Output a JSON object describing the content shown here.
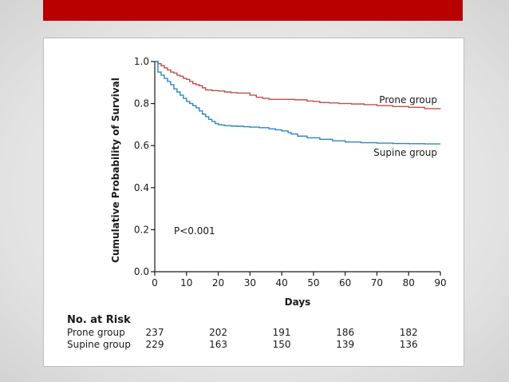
{
  "colors": {
    "banner": "#b80000",
    "prone": "#c0504d",
    "supine": "#2e86c1"
  },
  "chart_data": {
    "type": "line",
    "step": true,
    "ylabel": "Cumulative Probability of Survival",
    "xlabel": "Days",
    "xlim": [
      0,
      90
    ],
    "ylim": [
      0.0,
      1.0
    ],
    "xticks": [
      0,
      10,
      20,
      30,
      40,
      50,
      60,
      70,
      80,
      90
    ],
    "yticks": [
      "0.0",
      "0.2",
      "0.4",
      "0.6",
      "0.8",
      "1.0"
    ],
    "annotation": "P<0.001",
    "series": [
      {
        "name": "Prone group",
        "x": [
          0,
          1,
          2,
          3,
          4,
          5,
          6,
          7,
          8,
          9,
          10,
          11,
          12,
          13,
          14,
          15,
          16,
          18,
          20,
          22,
          24,
          26,
          28,
          30,
          32,
          34,
          36,
          40,
          44,
          48,
          50,
          52,
          55,
          58,
          62,
          66,
          70,
          75,
          80,
          85,
          90
        ],
        "y": [
          1.0,
          0.99,
          0.98,
          0.97,
          0.96,
          0.95,
          0.945,
          0.935,
          0.93,
          0.92,
          0.915,
          0.905,
          0.895,
          0.89,
          0.885,
          0.875,
          0.865,
          0.862,
          0.86,
          0.855,
          0.852,
          0.85,
          0.85,
          0.84,
          0.83,
          0.825,
          0.82,
          0.82,
          0.818,
          0.812,
          0.81,
          0.805,
          0.803,
          0.8,
          0.798,
          0.795,
          0.79,
          0.786,
          0.782,
          0.776,
          0.775
        ]
      },
      {
        "name": "Supine group",
        "x": [
          0,
          1,
          2,
          3,
          4,
          5,
          6,
          7,
          8,
          9,
          10,
          11,
          12,
          13,
          14,
          15,
          16,
          17,
          18,
          19,
          20,
          21,
          22,
          24,
          26,
          28,
          30,
          33,
          36,
          38,
          40,
          42,
          43,
          45,
          48,
          52,
          56,
          60,
          65,
          70,
          75,
          80,
          85,
          90
        ],
        "y": [
          1.0,
          0.95,
          0.935,
          0.92,
          0.905,
          0.89,
          0.87,
          0.855,
          0.84,
          0.825,
          0.81,
          0.8,
          0.79,
          0.78,
          0.765,
          0.75,
          0.738,
          0.725,
          0.715,
          0.705,
          0.7,
          0.698,
          0.695,
          0.693,
          0.692,
          0.69,
          0.688,
          0.685,
          0.68,
          0.675,
          0.67,
          0.662,
          0.655,
          0.645,
          0.637,
          0.63,
          0.623,
          0.617,
          0.614,
          0.612,
          0.61,
          0.609,
          0.608,
          0.608
        ]
      }
    ],
    "risk_table": {
      "title": "No. at Risk",
      "rows": [
        {
          "label": "Prone group",
          "values": [
            "237",
            "202",
            "191",
            "186",
            "182"
          ]
        },
        {
          "label": "Supine group",
          "values": [
            "229",
            "163",
            "150",
            "139",
            "136"
          ]
        }
      ]
    }
  }
}
